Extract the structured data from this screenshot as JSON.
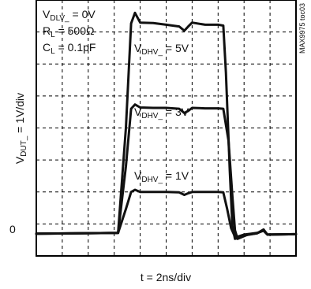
{
  "chart_data": {
    "type": "line",
    "settings": {
      "vdlv": {
        "main": "V",
        "sub": "DLV_",
        "tail": " = 0V"
      },
      "rl": {
        "main": "R",
        "sub": "L",
        "tail": " = 500Ω"
      },
      "cl": {
        "main": "C",
        "sub": "L",
        "tail": " = 0.1pF"
      }
    },
    "ylabel": {
      "main": "V",
      "sub": "DUT_",
      "tail": " = 1V/div"
    },
    "xlabel": "t = 2ns/div",
    "y_zero_label": "0",
    "figure_id": "MAX9975 toc03",
    "grid": {
      "x_divisions": 10,
      "y_divisions": 8,
      "style": "dashed"
    },
    "xlim": [
      0,
      20
    ],
    "ylim": [
      -0.5,
      5.5
    ],
    "x_units": "ns",
    "y_units": "V",
    "series": [
      {
        "annotation": {
          "main": "V",
          "sub": "DHV_",
          "tail": " = 5V"
        },
        "x": [
          0,
          6.3,
          6.9,
          7.3,
          7.6,
          8.0,
          9.0,
          10.0,
          11.0,
          11.4,
          11.7,
          12.0,
          13.0,
          14.0,
          14.4,
          14.6,
          14.9,
          15.1,
          15.3,
          15.5,
          16.0,
          17.0,
          17.5,
          17.8,
          20.0
        ],
        "values": [
          0.02,
          0.04,
          2.5,
          4.95,
          5.2,
          4.97,
          4.96,
          4.92,
          4.88,
          4.78,
          4.88,
          4.97,
          4.92,
          4.92,
          4.9,
          3.8,
          1.5,
          0.2,
          -0.1,
          -0.08,
          -0.02,
          0.03,
          0.12,
          0.0,
          0.01
        ]
      },
      {
        "annotation": {
          "main": "V",
          "sub": "DHV_",
          "tail": " = 3V"
        },
        "x": [
          0,
          6.3,
          6.9,
          7.3,
          7.6,
          8.0,
          9.0,
          10.0,
          11.0,
          11.4,
          11.7,
          12.0,
          13.0,
          14.0,
          14.4,
          14.8,
          15.1,
          15.3,
          15.5,
          15.8,
          16.3,
          17.0,
          17.5,
          17.8,
          20.0
        ],
        "values": [
          0.02,
          0.04,
          1.6,
          2.95,
          3.05,
          2.98,
          2.97,
          2.97,
          2.95,
          2.85,
          2.9,
          2.97,
          2.96,
          2.96,
          2.95,
          2.2,
          0.9,
          0.1,
          -0.1,
          -0.06,
          0.0,
          0.03,
          0.1,
          0.0,
          0.01
        ]
      },
      {
        "annotation": {
          "main": "V",
          "sub": "DHV_",
          "tail": " = 1V"
        },
        "x": [
          0,
          6.3,
          6.9,
          7.3,
          7.6,
          8.0,
          9.0,
          10.0,
          11.0,
          11.4,
          11.7,
          12.0,
          13.0,
          14.0,
          14.4,
          14.7,
          15.0,
          15.3,
          15.6,
          16.0,
          16.5,
          17.0,
          17.5,
          17.8,
          20.0
        ],
        "values": [
          0.02,
          0.04,
          0.6,
          1.0,
          1.05,
          1.0,
          1.0,
          1.0,
          0.99,
          0.93,
          0.97,
          1.0,
          1.0,
          1.0,
          0.99,
          0.6,
          0.15,
          -0.05,
          -0.04,
          0.0,
          0.02,
          0.04,
          0.09,
          0.0,
          0.01
        ]
      }
    ]
  }
}
